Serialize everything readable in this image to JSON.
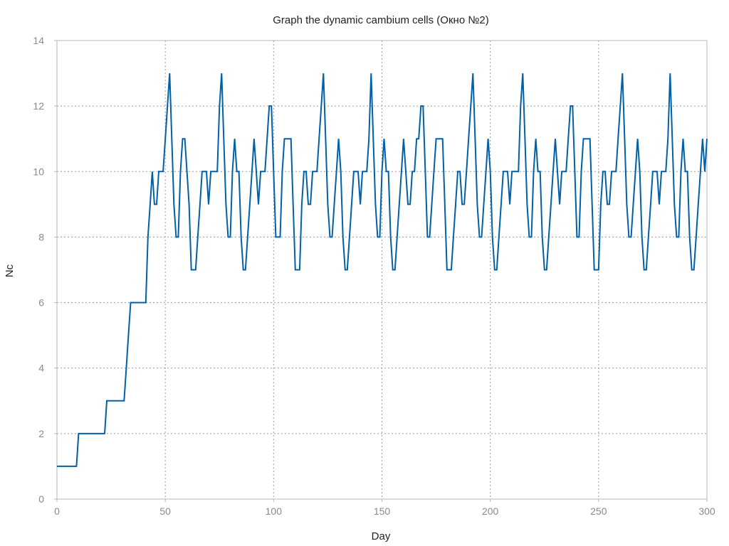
{
  "chart_data": {
    "type": "line",
    "title": "Graph the dynamic cambium cells (Окно №2)",
    "xlabel": "Day",
    "ylabel": "Nc",
    "xlim": [
      0,
      300
    ],
    "ylim": [
      0,
      14
    ],
    "xticks": [
      0,
      50,
      100,
      150,
      200,
      250,
      300
    ],
    "yticks": [
      0,
      2,
      4,
      6,
      8,
      10,
      12,
      14
    ],
    "grid": true,
    "step": true,
    "series": [
      {
        "color": "#0060a8",
        "points": [
          [
            0,
            1
          ],
          [
            9,
            1
          ],
          [
            10,
            2
          ],
          [
            22,
            2
          ],
          [
            23,
            3
          ],
          [
            31,
            3
          ],
          [
            32,
            4
          ],
          [
            33,
            5
          ],
          [
            34,
            6
          ],
          [
            41,
            6
          ],
          [
            42,
            8
          ],
          [
            43,
            9
          ],
          [
            44,
            10
          ],
          [
            45,
            9
          ],
          [
            46,
            9
          ],
          [
            47,
            10
          ],
          [
            49,
            10
          ],
          [
            50,
            11
          ],
          [
            51,
            12
          ],
          [
            52,
            13
          ],
          [
            53,
            11
          ],
          [
            54,
            9
          ],
          [
            55,
            8
          ],
          [
            56,
            8
          ],
          [
            57,
            10
          ],
          [
            58,
            11
          ],
          [
            59,
            11
          ],
          [
            60,
            10
          ],
          [
            61,
            9
          ],
          [
            62,
            7
          ],
          [
            64,
            7
          ],
          [
            65,
            8
          ],
          [
            66,
            9
          ],
          [
            67,
            10
          ],
          [
            69,
            10
          ],
          [
            70,
            9
          ],
          [
            71,
            10
          ],
          [
            74,
            10
          ],
          [
            75,
            12
          ],
          [
            76,
            13
          ],
          [
            77,
            11
          ],
          [
            78,
            9
          ],
          [
            79,
            8
          ],
          [
            80,
            8
          ],
          [
            81,
            10
          ],
          [
            82,
            11
          ],
          [
            83,
            10
          ],
          [
            84,
            10
          ],
          [
            85,
            8
          ],
          [
            86,
            7
          ],
          [
            87,
            7
          ],
          [
            88,
            8
          ],
          [
            89,
            9
          ],
          [
            90,
            10
          ],
          [
            91,
            11
          ],
          [
            92,
            10
          ],
          [
            93,
            9
          ],
          [
            94,
            10
          ],
          [
            96,
            10
          ],
          [
            97,
            11
          ],
          [
            98,
            12
          ],
          [
            99,
            12
          ],
          [
            100,
            10
          ],
          [
            101,
            8
          ],
          [
            103,
            8
          ],
          [
            104,
            10
          ],
          [
            105,
            11
          ],
          [
            108,
            11
          ],
          [
            109,
            9
          ],
          [
            110,
            7
          ],
          [
            112,
            7
          ],
          [
            113,
            9
          ],
          [
            114,
            10
          ],
          [
            115,
            10
          ],
          [
            116,
            9
          ],
          [
            117,
            9
          ],
          [
            118,
            10
          ],
          [
            120,
            10
          ],
          [
            121,
            11
          ],
          [
            122,
            12
          ],
          [
            123,
            13
          ],
          [
            124,
            11
          ],
          [
            125,
            9
          ],
          [
            126,
            8
          ],
          [
            127,
            8
          ],
          [
            128,
            9
          ],
          [
            129,
            10
          ],
          [
            130,
            11
          ],
          [
            131,
            10
          ],
          [
            132,
            8
          ],
          [
            133,
            7
          ],
          [
            134,
            7
          ],
          [
            135,
            8
          ],
          [
            136,
            9
          ],
          [
            137,
            10
          ],
          [
            139,
            10
          ],
          [
            140,
            9
          ],
          [
            141,
            10
          ],
          [
            143,
            10
          ],
          [
            144,
            11
          ],
          [
            145,
            13
          ],
          [
            146,
            11
          ],
          [
            147,
            9
          ],
          [
            148,
            8
          ],
          [
            149,
            8
          ],
          [
            150,
            10
          ],
          [
            151,
            11
          ],
          [
            152,
            10
          ],
          [
            153,
            10
          ],
          [
            154,
            8
          ],
          [
            155,
            7
          ],
          [
            156,
            7
          ],
          [
            157,
            8
          ],
          [
            158,
            9
          ],
          [
            159,
            10
          ],
          [
            160,
            11
          ],
          [
            161,
            10
          ],
          [
            162,
            9
          ],
          [
            163,
            9
          ],
          [
            164,
            10
          ],
          [
            165,
            10
          ],
          [
            166,
            11
          ],
          [
            167,
            11
          ],
          [
            168,
            12
          ],
          [
            169,
            12
          ],
          [
            170,
            10
          ],
          [
            171,
            8
          ],
          [
            172,
            8
          ],
          [
            173,
            9
          ],
          [
            174,
            10
          ],
          [
            175,
            11
          ],
          [
            178,
            11
          ],
          [
            179,
            9
          ],
          [
            180,
            7
          ],
          [
            182,
            7
          ],
          [
            183,
            8
          ],
          [
            184,
            9
          ],
          [
            185,
            10
          ],
          [
            186,
            10
          ],
          [
            187,
            9
          ],
          [
            188,
            9
          ],
          [
            189,
            10
          ],
          [
            190,
            11
          ],
          [
            191,
            12
          ],
          [
            192,
            13
          ],
          [
            193,
            11
          ],
          [
            194,
            9
          ],
          [
            195,
            8
          ],
          [
            196,
            8
          ],
          [
            197,
            9
          ],
          [
            198,
            10
          ],
          [
            199,
            11
          ],
          [
            200,
            10
          ],
          [
            201,
            8
          ],
          [
            202,
            7
          ],
          [
            203,
            7
          ],
          [
            204,
            8
          ],
          [
            205,
            9
          ],
          [
            206,
            10
          ],
          [
            208,
            10
          ],
          [
            209,
            9
          ],
          [
            210,
            10
          ],
          [
            213,
            10
          ],
          [
            214,
            12
          ],
          [
            215,
            13
          ],
          [
            216,
            11
          ],
          [
            217,
            9
          ],
          [
            218,
            8
          ],
          [
            219,
            8
          ],
          [
            220,
            10
          ],
          [
            221,
            11
          ],
          [
            222,
            10
          ],
          [
            223,
            10
          ],
          [
            224,
            8
          ],
          [
            225,
            7
          ],
          [
            226,
            7
          ],
          [
            227,
            8
          ],
          [
            228,
            9
          ],
          [
            229,
            10
          ],
          [
            230,
            11
          ],
          [
            231,
            10
          ],
          [
            232,
            9
          ],
          [
            233,
            10
          ],
          [
            235,
            10
          ],
          [
            236,
            11
          ],
          [
            237,
            12
          ],
          [
            238,
            12
          ],
          [
            239,
            10
          ],
          [
            240,
            8
          ],
          [
            241,
            8
          ],
          [
            242,
            10
          ],
          [
            243,
            11
          ],
          [
            246,
            11
          ],
          [
            247,
            9
          ],
          [
            248,
            7
          ],
          [
            250,
            7
          ],
          [
            251,
            9
          ],
          [
            252,
            10
          ],
          [
            253,
            10
          ],
          [
            254,
            9
          ],
          [
            255,
            9
          ],
          [
            256,
            10
          ],
          [
            258,
            10
          ],
          [
            259,
            11
          ],
          [
            260,
            12
          ],
          [
            261,
            13
          ],
          [
            262,
            11
          ],
          [
            263,
            9
          ],
          [
            264,
            8
          ],
          [
            265,
            8
          ],
          [
            266,
            9
          ],
          [
            267,
            10
          ],
          [
            268,
            11
          ],
          [
            269,
            10
          ],
          [
            270,
            8
          ],
          [
            271,
            7
          ],
          [
            272,
            7
          ],
          [
            273,
            8
          ],
          [
            274,
            9
          ],
          [
            275,
            10
          ],
          [
            277,
            10
          ],
          [
            278,
            9
          ],
          [
            279,
            10
          ],
          [
            281,
            10
          ],
          [
            282,
            11
          ],
          [
            283,
            13
          ],
          [
            284,
            11
          ],
          [
            285,
            9
          ],
          [
            286,
            8
          ],
          [
            287,
            8
          ],
          [
            288,
            10
          ],
          [
            289,
            11
          ],
          [
            290,
            10
          ],
          [
            291,
            10
          ],
          [
            292,
            8
          ],
          [
            293,
            7
          ],
          [
            294,
            7
          ],
          [
            295,
            8
          ],
          [
            296,
            9
          ],
          [
            297,
            10
          ],
          [
            298,
            11
          ],
          [
            299,
            10
          ],
          [
            300,
            11
          ]
        ]
      }
    ]
  }
}
